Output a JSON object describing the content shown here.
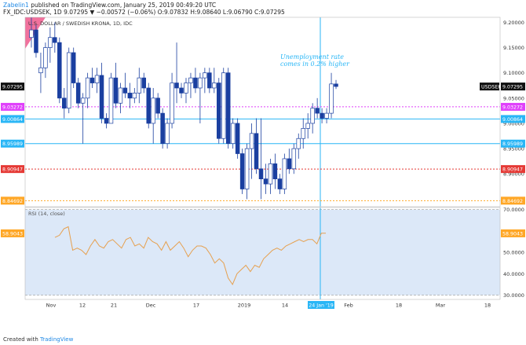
{
  "header": {
    "author": "Zabelin1",
    "published_text": "published on TradingView.com, January 25, 2019 00:49:20 UTC",
    "symbol_line": "FX_IDC:USDSEK, 1D  9.07295  ▼  −0.00572 (−0.06%)  O:9.07832  H:9.08640  L:9.06790  C:9.07295"
  },
  "chart_title": "U.S. DOLLAR / SWEDISH KRONA, 1D, IDC",
  "annotation": [
    "Unemployment rate",
    "comes in 0.2% higher"
  ],
  "price_axis_ticks": [
    "9.20000",
    "9.15000",
    "9.10000",
    "9.05000",
    "9.00000",
    "8.95000",
    "8.90000",
    "8.85000"
  ],
  "level_labels": {
    "current": "9.07295",
    "current_symbol": "USDSEK",
    "magenta": "9.03272",
    "blue_upper": "9.00864",
    "blue_lower": "8.95989",
    "red": "8.90947",
    "orange": "8.84692"
  },
  "rsi": {
    "label": "RSI (14, close)",
    "value_label": "58.9043",
    "ticks": [
      "70.0000",
      "60.0000",
      "50.0000",
      "40.0000",
      "30.0000"
    ]
  },
  "time_axis": [
    "Nov",
    "12",
    "21",
    "Dec",
    "17",
    "2019",
    "14",
    "24 Jan '19",
    "Feb",
    "18",
    "Mar",
    "18"
  ],
  "footer": {
    "prefix": "Created with",
    "brand": "TradingView"
  },
  "colors": {
    "up": "#ffffff",
    "down": "#1a3fa0",
    "magenta": "#e040fb",
    "blue": "#29b6f6",
    "red": "#e53935",
    "orange": "#ffa726",
    "rsi_line": "#e6a04f",
    "rsi_bg": "#dce8f8"
  },
  "chart_data": {
    "type": "candlestick",
    "title": "U.S. DOLLAR / SWEDISH KRONA, 1D, IDC",
    "ylim": [
      8.835,
      9.21
    ],
    "levels": [
      9.03272,
      9.00864,
      8.95989,
      8.90947,
      8.84692
    ],
    "candles": [
      {
        "o": 9.17,
        "h": 9.21,
        "l": 9.15,
        "c": 9.185
      },
      {
        "o": 9.185,
        "h": 9.195,
        "l": 9.13,
        "c": 9.14
      },
      {
        "o": 9.1,
        "h": 9.14,
        "l": 9.06,
        "c": 9.11
      },
      {
        "o": 9.11,
        "h": 9.16,
        "l": 9.09,
        "c": 9.15
      },
      {
        "o": 9.15,
        "h": 9.19,
        "l": 9.12,
        "c": 9.17
      },
      {
        "o": 9.17,
        "h": 9.2,
        "l": 9.14,
        "c": 9.16
      },
      {
        "o": 9.16,
        "h": 9.17,
        "l": 9.04,
        "c": 9.05
      },
      {
        "o": 9.05,
        "h": 9.07,
        "l": 9.01,
        "c": 9.03
      },
      {
        "o": 9.03,
        "h": 9.15,
        "l": 9.02,
        "c": 9.14
      },
      {
        "o": 9.14,
        "h": 9.15,
        "l": 9.07,
        "c": 9.08
      },
      {
        "o": 9.08,
        "h": 9.09,
        "l": 9.03,
        "c": 9.04
      },
      {
        "o": 9.04,
        "h": 9.06,
        "l": 8.96,
        "c": 9.05
      },
      {
        "o": 9.05,
        "h": 9.1,
        "l": 9.03,
        "c": 9.09
      },
      {
        "o": 9.09,
        "h": 9.11,
        "l": 9.07,
        "c": 9.08
      },
      {
        "o": 9.08,
        "h": 9.11,
        "l": 9.06,
        "c": 9.095
      },
      {
        "o": 9.095,
        "h": 9.12,
        "l": 9.0,
        "c": 9.01
      },
      {
        "o": 9.01,
        "h": 9.02,
        "l": 8.99,
        "c": 9.0
      },
      {
        "o": 9.0,
        "h": 9.1,
        "l": 9.0,
        "c": 9.09
      },
      {
        "o": 9.09,
        "h": 9.12,
        "l": 9.03,
        "c": 9.04
      },
      {
        "o": 9.04,
        "h": 9.08,
        "l": 9.02,
        "c": 9.07
      },
      {
        "o": 9.07,
        "h": 9.1,
        "l": 9.05,
        "c": 9.06
      },
      {
        "o": 9.06,
        "h": 9.08,
        "l": 9.03,
        "c": 9.05
      },
      {
        "o": 9.05,
        "h": 9.07,
        "l": 9.04,
        "c": 9.06
      },
      {
        "o": 9.06,
        "h": 9.11,
        "l": 9.04,
        "c": 9.09
      },
      {
        "o": 9.09,
        "h": 9.1,
        "l": 9.06,
        "c": 9.07
      },
      {
        "o": 9.07,
        "h": 9.08,
        "l": 8.99,
        "c": 9.0
      },
      {
        "o": 9.0,
        "h": 9.07,
        "l": 8.96,
        "c": 9.05
      },
      {
        "o": 9.05,
        "h": 9.06,
        "l": 9.01,
        "c": 9.02
      },
      {
        "o": 9.02,
        "h": 9.03,
        "l": 8.95,
        "c": 8.96
      },
      {
        "o": 8.96,
        "h": 9.01,
        "l": 8.95,
        "c": 9.0
      },
      {
        "o": 9.0,
        "h": 9.1,
        "l": 8.99,
        "c": 9.08
      },
      {
        "o": 9.08,
        "h": 9.16,
        "l": 9.04,
        "c": 9.07
      },
      {
        "o": 9.07,
        "h": 9.08,
        "l": 9.05,
        "c": 9.06
      },
      {
        "o": 9.06,
        "h": 9.09,
        "l": 9.04,
        "c": 9.08
      },
      {
        "o": 9.08,
        "h": 9.1,
        "l": 9.05,
        "c": 9.09
      },
      {
        "o": 9.09,
        "h": 9.11,
        "l": 9.06,
        "c": 9.07
      },
      {
        "o": 9.07,
        "h": 9.1,
        "l": 9.0,
        "c": 9.09
      },
      {
        "o": 9.09,
        "h": 9.11,
        "l": 9.06,
        "c": 9.1
      },
      {
        "o": 9.1,
        "h": 9.11,
        "l": 9.06,
        "c": 9.07
      },
      {
        "o": 9.07,
        "h": 9.11,
        "l": 9.06,
        "c": 9.08
      },
      {
        "o": 9.08,
        "h": 9.09,
        "l": 8.96,
        "c": 8.97
      },
      {
        "o": 8.97,
        "h": 9.11,
        "l": 8.96,
        "c": 9.1
      },
      {
        "o": 9.1,
        "h": 9.11,
        "l": 8.95,
        "c": 8.96
      },
      {
        "o": 8.96,
        "h": 9.01,
        "l": 8.95,
        "c": 9.0
      },
      {
        "o": 9.0,
        "h": 9.01,
        "l": 8.93,
        "c": 8.94
      },
      {
        "o": 8.94,
        "h": 8.95,
        "l": 8.86,
        "c": 8.87
      },
      {
        "o": 8.87,
        "h": 8.96,
        "l": 8.85,
        "c": 8.95
      },
      {
        "o": 8.95,
        "h": 9.0,
        "l": 8.89,
        "c": 8.98
      },
      {
        "o": 8.98,
        "h": 9.01,
        "l": 8.9,
        "c": 8.91
      },
      {
        "o": 8.91,
        "h": 9.01,
        "l": 8.85,
        "c": 8.89
      },
      {
        "o": 8.89,
        "h": 8.92,
        "l": 8.86,
        "c": 8.88
      },
      {
        "o": 8.88,
        "h": 8.93,
        "l": 8.86,
        "c": 8.92
      },
      {
        "o": 8.92,
        "h": 8.94,
        "l": 8.87,
        "c": 8.89
      },
      {
        "o": 8.89,
        "h": 8.9,
        "l": 8.86,
        "c": 8.87
      },
      {
        "o": 8.87,
        "h": 8.94,
        "l": 8.86,
        "c": 8.93
      },
      {
        "o": 8.93,
        "h": 8.95,
        "l": 8.9,
        "c": 8.91
      },
      {
        "o": 8.91,
        "h": 8.96,
        "l": 8.9,
        "c": 8.95
      },
      {
        "o": 8.95,
        "h": 8.98,
        "l": 8.93,
        "c": 8.97
      },
      {
        "o": 8.97,
        "h": 9.01,
        "l": 8.95,
        "c": 8.99
      },
      {
        "o": 8.99,
        "h": 9.02,
        "l": 8.97,
        "c": 9.0
      },
      {
        "o": 9.0,
        "h": 9.04,
        "l": 8.98,
        "c": 9.03
      },
      {
        "o": 9.03,
        "h": 9.05,
        "l": 9.01,
        "c": 9.02
      },
      {
        "o": 9.02,
        "h": 9.03,
        "l": 9.0,
        "c": 9.01
      },
      {
        "o": 9.01,
        "h": 9.03,
        "l": 9.0,
        "c": 9.02
      },
      {
        "o": 9.02,
        "h": 9.1,
        "l": 9.01,
        "c": 9.078
      },
      {
        "o": 9.078,
        "h": 9.086,
        "l": 9.068,
        "c": 9.073
      }
    ],
    "rsi": {
      "ylim": [
        28,
        71
      ],
      "values": [
        57,
        58,
        61,
        62,
        51,
        52,
        51,
        49,
        53,
        56,
        53,
        52,
        55,
        56,
        54,
        52,
        56,
        57,
        53,
        54,
        52,
        57,
        55,
        54,
        51,
        55,
        51,
        53,
        55,
        52,
        48,
        51,
        53,
        53,
        52,
        49,
        45,
        47,
        45,
        38,
        35,
        40,
        42,
        44,
        41,
        44,
        43,
        47,
        49,
        51,
        52,
        51,
        53,
        54,
        55,
        56,
        55,
        56,
        56,
        54,
        59,
        59
      ]
    }
  }
}
